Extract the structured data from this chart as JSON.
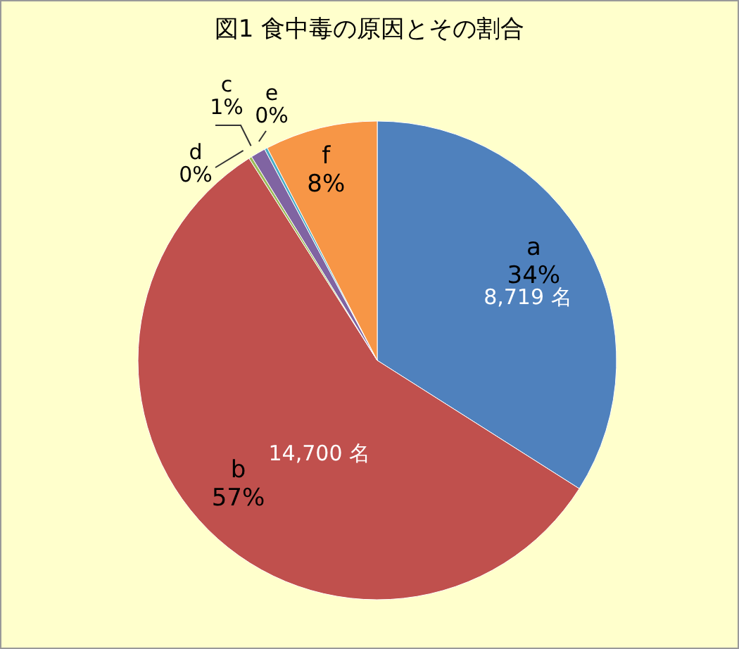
{
  "chart_data": {
    "type": "pie",
    "title": "図1 食中毒の原因とその割合",
    "categories": [
      "a",
      "b",
      "d",
      "c",
      "e",
      "f"
    ],
    "values": [
      34,
      57,
      0.2,
      1.0,
      0.2,
      7.6
    ],
    "value_labels": [
      "34%",
      "57%",
      "0%",
      "1%",
      "0%",
      "8%"
    ],
    "colors": [
      "#4f81bd",
      "#c0504d",
      "#9bbb59",
      "#8064a2",
      "#4bacc6",
      "#f79646"
    ],
    "annotations": [
      {
        "text": "8,719 名",
        "x": "a"
      },
      {
        "text": "14,700 名",
        "x": "b"
      }
    ],
    "legend": false
  }
}
